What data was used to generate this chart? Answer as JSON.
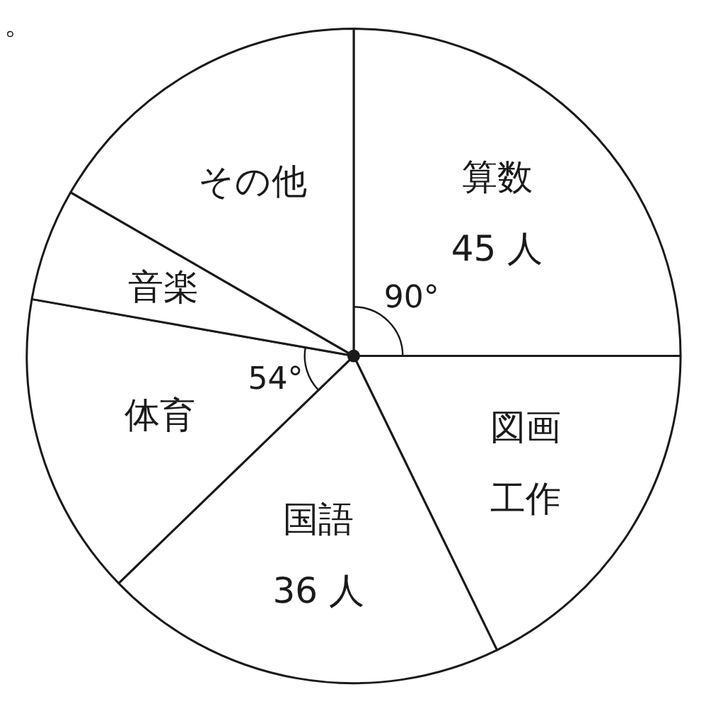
{
  "chart_data": {
    "type": "pie",
    "categories": [
      "算数",
      "図画工作",
      "国語",
      "体育",
      "音楽",
      "その他"
    ],
    "values": [
      45,
      32,
      36,
      27,
      10,
      30
    ],
    "colors": [
      "#ffffff",
      "#ffffff",
      "#ffffff",
      "#ffffff",
      "#ffffff",
      "#ffffff"
    ],
    "value_labels": [
      "45 人",
      null,
      "36 人",
      null,
      null,
      null
    ],
    "annotations": [
      {
        "text": "90°",
        "x": "算数"
      },
      {
        "text": "54°",
        "x": "体育"
      },
      "。"
    ]
  }
}
